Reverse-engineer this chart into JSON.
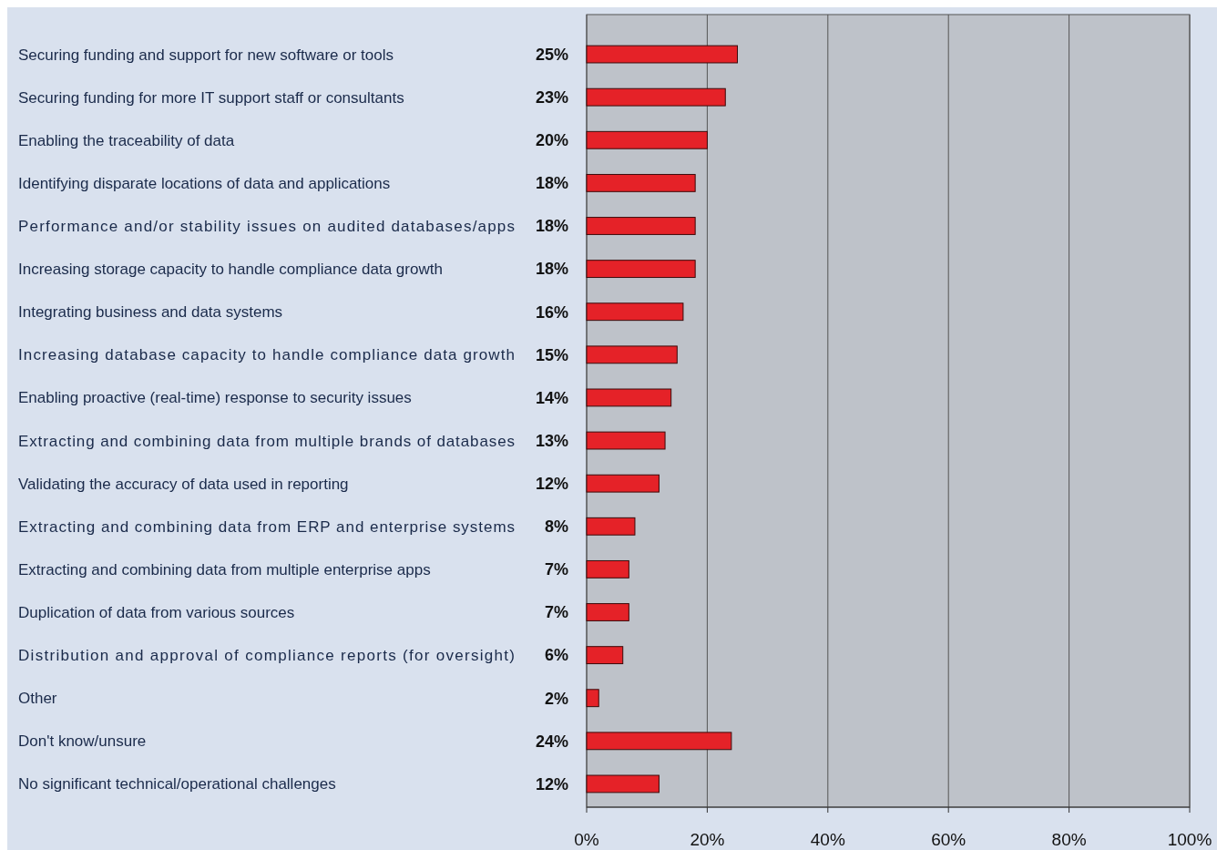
{
  "chart_data": {
    "type": "bar",
    "orientation": "horizontal",
    "categories": [
      "Securing funding and support for new software or tools",
      "Securing funding for more IT support staff or consultants",
      "Enabling the traceability of data",
      "Identifying disparate locations of data and applications",
      "Performance and/or stability issues on audited databases/apps",
      "Increasing storage capacity to handle compliance data growth",
      "Integrating business and data systems",
      "Increasing database capacity to handle compliance data growth",
      "Enabling proactive (real-time) response to security issues",
      "Extracting and combining data from multiple brands of databases",
      "Validating the accuracy of data used in reporting",
      "Extracting and combining data from ERP and enterprise systems",
      "Extracting and combining data from multiple enterprise apps",
      "Duplication of data from various sources",
      "Distribution and approval of compliance reports (for oversight)",
      "Other",
      "Don't know/unsure",
      "No significant technical/operational challenges"
    ],
    "values": [
      25,
      23,
      20,
      18,
      18,
      18,
      16,
      15,
      14,
      13,
      12,
      8,
      7,
      7,
      6,
      2,
      24,
      12
    ],
    "value_labels": [
      "25%",
      "23%",
      "20%",
      "18%",
      "18%",
      "18%",
      "16%",
      "15%",
      "14%",
      "13%",
      "12%",
      "8%",
      "7%",
      "7%",
      "6%",
      "2%",
      "24%",
      "12%"
    ],
    "color": "#e52228",
    "xlim": [
      0,
      100
    ],
    "xticks": [
      {
        "value": 0,
        "label": "0%"
      },
      {
        "value": 20,
        "label": "20%"
      },
      {
        "value": 40,
        "label": "40%"
      },
      {
        "value": 60,
        "label": "60%"
      },
      {
        "value": 80,
        "label": "80%"
      },
      {
        "value": 100,
        "label": "100%"
      }
    ],
    "grid": "x"
  }
}
